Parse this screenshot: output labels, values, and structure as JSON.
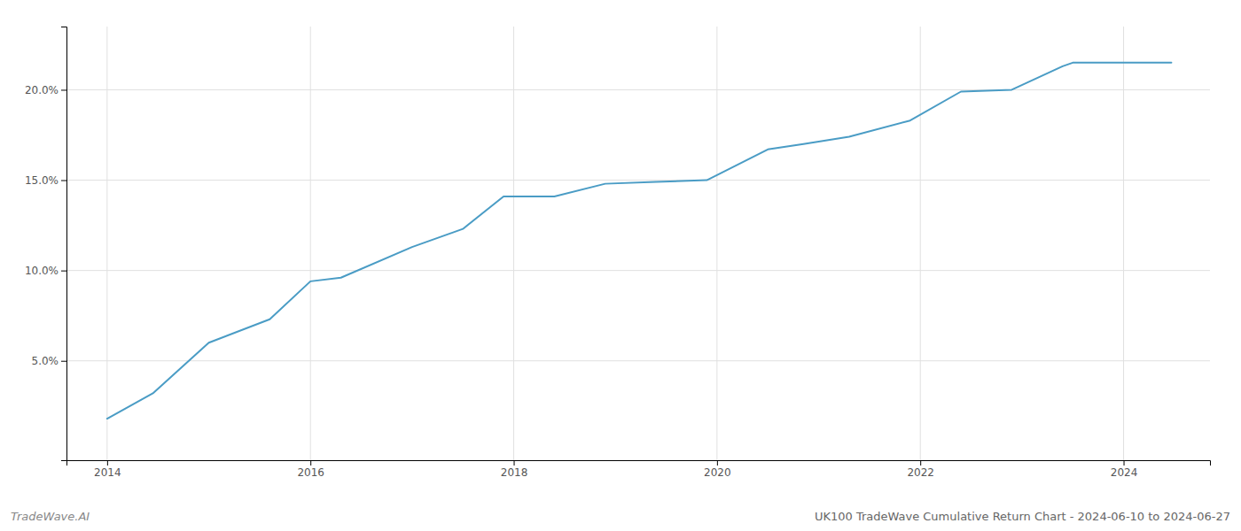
{
  "chart_data": {
    "type": "line",
    "title": "UK100 TradeWave Cumulative Return Chart - 2024-06-10 to 2024-06-27",
    "annotations": [
      "TradeWave.AI"
    ],
    "x": [
      2014.0,
      2014.45,
      2015.0,
      2015.6,
      2016.0,
      2016.3,
      2017.0,
      2017.5,
      2017.9,
      2018.4,
      2018.9,
      2019.4,
      2019.9,
      2020.5,
      2020.85,
      2021.3,
      2021.9,
      2022.4,
      2022.9,
      2023.4,
      2023.5,
      2024.0,
      2024.47
    ],
    "values": [
      0.018,
      0.032,
      0.06,
      0.073,
      0.094,
      0.096,
      0.113,
      0.123,
      0.141,
      0.141,
      0.148,
      0.149,
      0.15,
      0.167,
      0.17,
      0.174,
      0.183,
      0.199,
      0.2,
      0.213,
      0.215,
      0.215,
      0.215
    ],
    "color": "#4a9cc5",
    "xlim": [
      2013.6,
      2024.85
    ],
    "ylim": [
      -0.005,
      0.235
    ],
    "xticks": [
      2014,
      2016,
      2018,
      2020,
      2022,
      2024
    ],
    "yticks": [
      {
        "value": 0.05,
        "label": "5.0%"
      },
      {
        "value": 0.1,
        "label": "10.0%"
      },
      {
        "value": 0.15,
        "label": "15.0%"
      },
      {
        "value": 0.2,
        "label": "20.0%"
      }
    ],
    "grid": true
  }
}
